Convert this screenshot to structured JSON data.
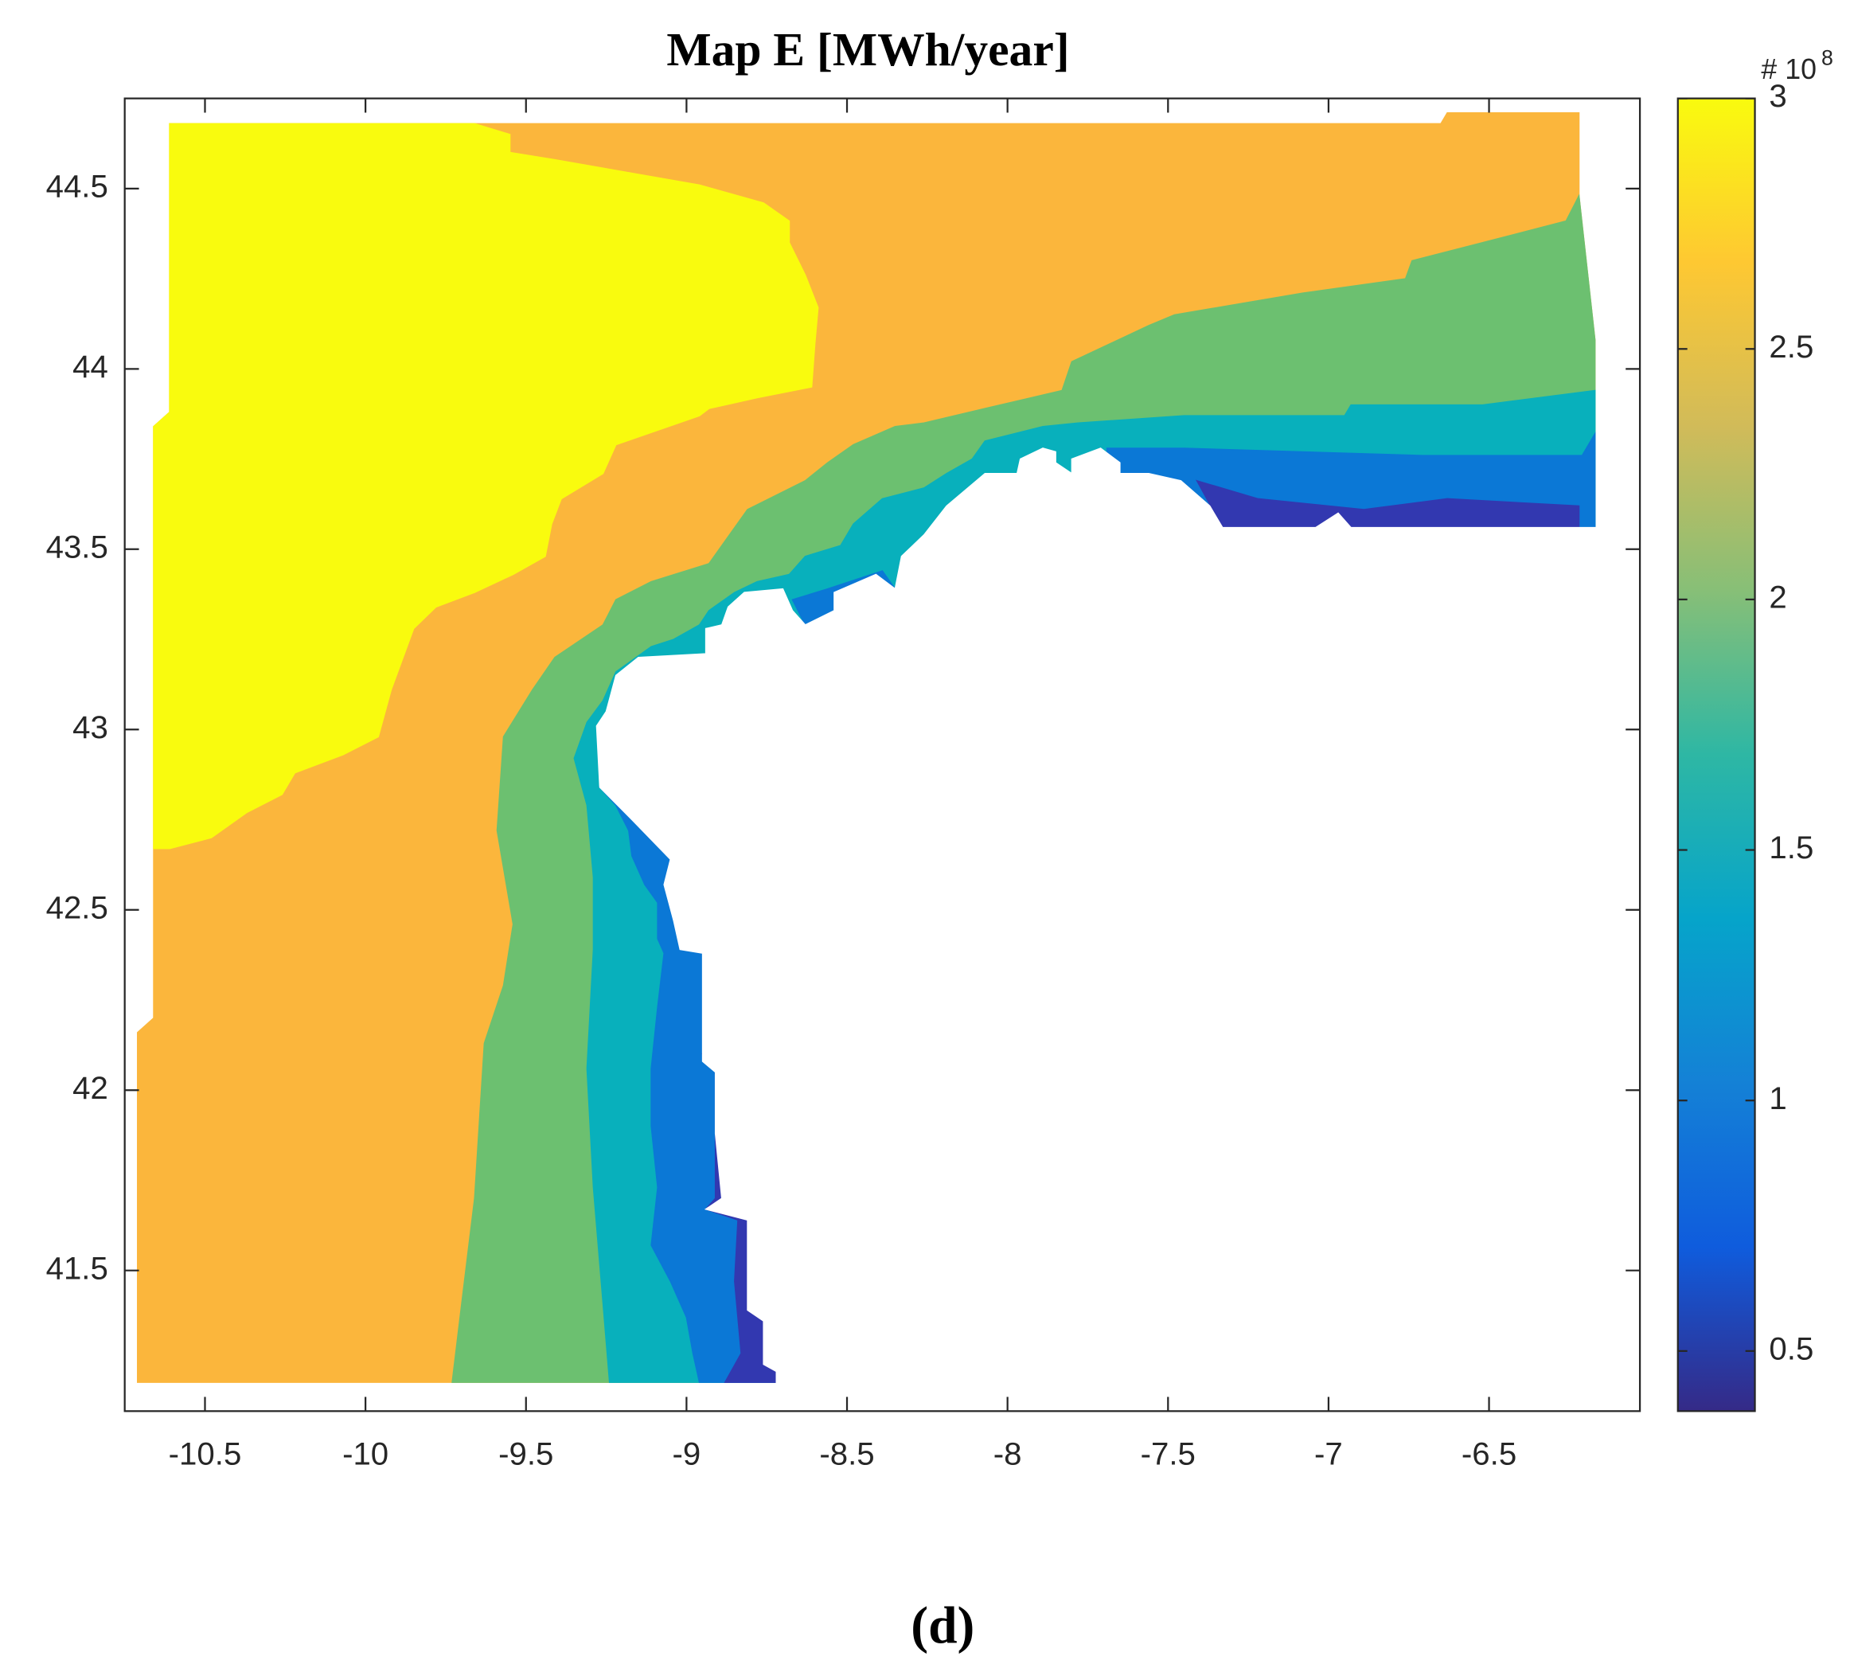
{
  "chart_data": {
    "type": "contour",
    "title": "Map E [MWh/year]",
    "caption": "(d)",
    "xlim": [
      -10.75,
      -6.03
    ],
    "xticks": [
      -10.5,
      -10,
      -9.5,
      -9,
      -8.5,
      -8,
      -7.5,
      -7,
      -6.5
    ],
    "ylim": [
      41.11,
      44.75
    ],
    "yticks": [
      41.5,
      42,
      42.5,
      43,
      43.5,
      44,
      44.5
    ],
    "clim": [
      0.38,
      3.0
    ],
    "cticks": [
      0.5,
      1,
      1.5,
      2,
      2.5,
      3
    ],
    "colorbar_label": "# 10",
    "colorbar_exponent": "8",
    "colormap": [
      "#352a87",
      "#0f5cdd",
      "#1481d6",
      "#06a4ca",
      "#2eb7a4",
      "#87bf77",
      "#d1bb59",
      "#fec832",
      "#f9fb0e"
    ],
    "regions": [
      {
        "level": 2.5,
        "color": "#fbb63c",
        "x": [
          -10.61,
          -6.65,
          -6.63,
          -6.22,
          -6.22,
          -6.17,
          -6.17,
          -6.22,
          -7.34,
          -8.72,
          -10.71,
          -10.71,
          -10.66,
          -10.66,
          -10.61
        ],
        "y": [
          44.68,
          44.68,
          44.71,
          44.71,
          44.48,
          44.08,
          43.62,
          43.56,
          43.56,
          41.19,
          41.19,
          42.16,
          42.2,
          43.84,
          43.88
        ]
      },
      {
        "level": 3,
        "color": "#f9fb0e",
        "x": [
          -10.61,
          -9.66,
          -9.55,
          -9.55,
          -9.41,
          -8.96,
          -8.76,
          -8.68,
          -8.68,
          -8.63,
          -8.59,
          -8.6,
          -8.61,
          -8.78,
          -8.93,
          -8.96,
          -9.22,
          -9.26,
          -9.39,
          -9.42,
          -9.44,
          -9.54,
          -9.66,
          -9.78,
          -9.85,
          -9.92,
          -9.96,
          -10.07,
          -10.22,
          -10.26,
          -10.37,
          -10.48,
          -10.61,
          -10.66,
          -10.66,
          -10.61
        ],
        "y": [
          44.68,
          44.68,
          44.65,
          44.6,
          44.58,
          44.51,
          44.46,
          44.41,
          44.35,
          44.26,
          44.17,
          44.07,
          43.95,
          43.92,
          43.89,
          43.87,
          43.79,
          43.71,
          43.64,
          43.57,
          43.48,
          43.43,
          43.38,
          43.34,
          43.28,
          43.11,
          42.98,
          42.93,
          42.88,
          42.82,
          42.77,
          42.7,
          42.67,
          42.67,
          43.84,
          43.88
        ]
      },
      {
        "level": 2,
        "color": "#6cc070",
        "x": [
          -6.22,
          -6.26,
          -6.52,
          -6.74,
          -6.76,
          -7.08,
          -7.48,
          -7.56,
          -7.8,
          -7.83,
          -8.07,
          -8.26,
          -8.35,
          -8.48,
          -8.56,
          -8.63,
          -8.81,
          -8.89,
          -8.93,
          -9.11,
          -9.22,
          -9.26,
          -9.41,
          -9.48,
          -9.57,
          -9.59,
          -9.54,
          -9.57,
          -9.63,
          -9.66,
          -9.7,
          -9.73,
          -8.72,
          -6.17,
          -6.17
        ],
        "y": [
          44.48,
          44.41,
          44.35,
          44.3,
          44.25,
          44.21,
          44.15,
          44.12,
          44.02,
          43.94,
          43.89,
          43.85,
          43.84,
          43.79,
          43.74,
          43.69,
          43.61,
          43.51,
          43.46,
          43.41,
          43.36,
          43.29,
          43.2,
          43.11,
          42.98,
          42.72,
          42.46,
          42.29,
          42.13,
          41.7,
          41.41,
          41.19,
          41.19,
          43.56,
          44.08
        ]
      },
      {
        "level": 1.5,
        "color": "#08b0bc",
        "x": [
          -6.17,
          -6.52,
          -6.93,
          -6.95,
          -7.45,
          -7.78,
          -7.89,
          -8.07,
          -8.11,
          -8.19,
          -8.26,
          -8.39,
          -8.48,
          -8.52,
          -8.63,
          -8.68,
          -8.78,
          -8.85,
          -8.93,
          -8.96,
          -9.04,
          -9.11,
          -9.22,
          -9.26,
          -9.31,
          -9.35,
          -9.31,
          -9.29,
          -9.29,
          -9.31,
          -9.29,
          -9.26,
          -9.24,
          -8.72,
          -6.17
        ],
        "y": [
          43.94,
          43.9,
          43.9,
          43.87,
          43.87,
          43.85,
          43.84,
          43.8,
          43.75,
          43.71,
          43.67,
          43.64,
          43.57,
          43.51,
          43.48,
          43.43,
          43.41,
          43.38,
          43.33,
          43.29,
          43.25,
          43.23,
          43.16,
          43.08,
          43.02,
          42.92,
          42.79,
          42.59,
          42.39,
          42.06,
          41.73,
          41.41,
          41.19,
          41.19,
          43.56
        ]
      },
      {
        "level": 1,
        "color": "#0b78d6",
        "x": [
          -6.17,
          -6.21,
          -6.71,
          -7.45,
          -7.69,
          -7.69,
          -6.17
        ],
        "y": [
          43.82,
          43.76,
          43.76,
          43.78,
          43.78,
          43.61,
          43.56
        ]
      },
      {
        "level": 1,
        "color": "#0b78d6",
        "x": [
          -9.27,
          -9.22,
          -9.18,
          -9.17,
          -9.13,
          -9.09,
          -9.09,
          -9.07,
          -9.09,
          -9.11,
          -9.11,
          -9.09,
          -9.11,
          -9.05,
          -9.0,
          -8.98,
          -8.96,
          -8.72,
          -8.72
        ],
        "y": [
          42.84,
          42.79,
          42.72,
          42.65,
          42.57,
          42.52,
          42.42,
          42.38,
          42.23,
          42.06,
          41.9,
          41.73,
          41.57,
          41.47,
          41.37,
          41.27,
          41.19,
          41.19,
          42.72
        ]
      },
      {
        "level": 1,
        "color": "#0b78d6",
        "x": [
          -8.67,
          -8.56,
          -8.39,
          -8.35,
          -8.54,
          -8.63
        ],
        "y": [
          43.36,
          43.39,
          43.44,
          43.39,
          43.33,
          43.29
        ]
      },
      {
        "level": 0.5,
        "color": "#3238b0",
        "x": [
          -7.41,
          -7.22,
          -6.89,
          -6.63,
          -6.22,
          -6.22,
          -7.33
        ],
        "y": [
          43.69,
          43.64,
          43.61,
          43.64,
          43.62,
          43.56,
          43.56
        ]
      },
      {
        "level": 0.5,
        "color": "#3238b0",
        "x": [
          -8.95,
          -8.91,
          -8.91,
          -8.91,
          -8.94,
          -8.84,
          -8.85,
          -8.83,
          -8.88,
          -8.56,
          -8.56
        ],
        "y": [
          42.1,
          42.06,
          41.87,
          41.7,
          41.67,
          41.64,
          41.47,
          41.27,
          41.19,
          41.19,
          42.13
        ]
      },
      {
        "level": null,
        "color": "#ffffff",
        "x": [
          -6.22,
          -6.93,
          -6.97,
          -7.04,
          -7.33,
          -7.37,
          -7.46,
          -7.56,
          -7.65,
          -7.65,
          -7.71,
          -7.8,
          -7.8,
          -7.85,
          -7.85,
          -7.89,
          -7.96,
          -7.97,
          -8.07,
          -8.19,
          -8.26,
          -8.33,
          -8.35,
          -8.41,
          -8.54,
          -8.54,
          -8.63,
          -8.67,
          -8.7,
          -8.82,
          -8.87,
          -8.89,
          -8.94,
          -8.94,
          -9.15,
          -9.22,
          -9.25,
          -9.28,
          -9.27,
          -9.17,
          -9.05,
          -9.07,
          -9.04,
          -9.02,
          -8.95,
          -8.95,
          -8.91,
          -8.91,
          -8.89,
          -8.94,
          -8.81,
          -8.81,
          -8.76,
          -8.76,
          -8.72,
          -8.72,
          -8.72,
          -6.03,
          -6.03
        ],
        "y": [
          43.56,
          43.56,
          43.6,
          43.56,
          43.56,
          43.62,
          43.69,
          43.71,
          43.71,
          43.74,
          43.78,
          43.75,
          43.71,
          43.74,
          43.77,
          43.78,
          43.75,
          43.71,
          43.71,
          43.62,
          43.54,
          43.48,
          43.39,
          43.43,
          43.38,
          43.33,
          43.29,
          43.33,
          43.39,
          43.38,
          43.34,
          43.29,
          43.28,
          43.21,
          43.2,
          43.15,
          43.05,
          43.01,
          42.84,
          42.75,
          42.64,
          42.57,
          42.47,
          42.39,
          42.38,
          42.08,
          42.05,
          41.88,
          41.7,
          41.67,
          41.64,
          41.39,
          41.36,
          41.24,
          41.22,
          41.19,
          41.11,
          41.11,
          43.56
        ]
      }
    ]
  }
}
